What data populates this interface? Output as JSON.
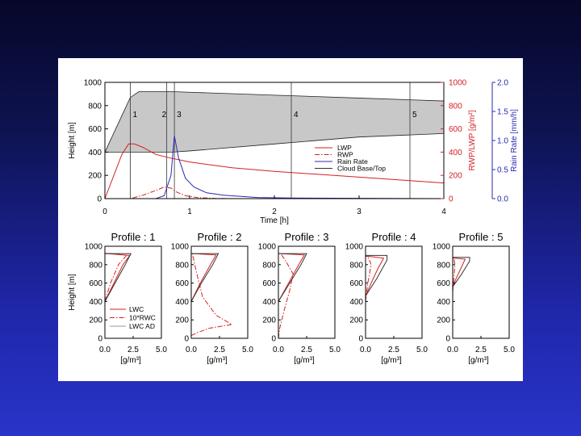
{
  "chart_data": [
    {
      "type": "line",
      "xlabel": "Time [h]",
      "ylabel_left": "Height [m]",
      "ylabel_right1": "RWP/LWP [g/m²]",
      "ylabel_right2": "Rain Rate [mm/h]",
      "xlim": [
        0,
        4
      ],
      "ylim": [
        0,
        1000
      ],
      "y2lim": [
        0,
        1000
      ],
      "y3lim": [
        0,
        2.0
      ],
      "xticks": [
        "0",
        "1",
        "2",
        "3",
        "4"
      ],
      "yticks": [
        "0",
        "200",
        "400",
        "600",
        "800",
        "1000"
      ],
      "y2ticks": [
        "0",
        "200",
        "400",
        "600",
        "800",
        "1000"
      ],
      "y3ticks": [
        "0.0",
        "0.5",
        "1.0",
        "1.5",
        "2.0"
      ],
      "cloud_band": {
        "x": [
          0.0,
          0.3,
          0.4,
          0.8,
          1.0,
          2.0,
          3.0,
          4.0
        ],
        "base": [
          400,
          400,
          400,
          400,
          410,
          470,
          530,
          560
        ],
        "top": [
          400,
          870,
          920,
          920,
          915,
          890,
          865,
          840
        ]
      },
      "profile_markers": [
        {
          "label": "1",
          "x": 0.3
        },
        {
          "label": "2",
          "x": 0.73
        },
        {
          "label": "3",
          "x": 0.82
        },
        {
          "label": "4",
          "x": 2.2
        },
        {
          "label": "5",
          "x": 3.6
        }
      ],
      "legend": [
        "LWP",
        "RWP",
        "Rain Rate",
        "Cloud Base/Top"
      ],
      "series": [
        {
          "name": "LWP",
          "color": "#d42020",
          "dash": "solid",
          "axis": "y2",
          "x": [
            0,
            0.2,
            0.28,
            0.35,
            0.45,
            0.6,
            0.8,
            1.0,
            1.5,
            2.0,
            2.5,
            3.0,
            3.5,
            4.0
          ],
          "y": [
            0,
            380,
            470,
            470,
            440,
            380,
            345,
            315,
            265,
            235,
            210,
            185,
            160,
            135
          ]
        },
        {
          "name": "RWP",
          "color": "#d42020",
          "dash": "dashdot",
          "axis": "y2",
          "x": [
            0,
            0.3,
            0.45,
            0.6,
            0.7,
            0.78,
            0.85,
            0.95,
            1.1,
            1.3,
            1.6
          ],
          "y": [
            0,
            0,
            30,
            70,
            100,
            90,
            55,
            25,
            8,
            2,
            0
          ]
        },
        {
          "name": "Rain Rate",
          "color": "#2a2ab0",
          "dash": "solid",
          "axis": "y3",
          "x": [
            0,
            0.6,
            0.7,
            0.78,
            0.82,
            0.87,
            0.95,
            1.05,
            1.2,
            1.4,
            1.8,
            2.2,
            4.0
          ],
          "y": [
            0,
            0,
            0.05,
            0.4,
            1.08,
            0.7,
            0.35,
            0.2,
            0.1,
            0.06,
            0.02,
            0.01,
            0.0
          ]
        }
      ]
    },
    {
      "type": "line",
      "title": "Profile : 1",
      "ylabel": "Height [m]",
      "xlabel": "[g/m³]",
      "xlim": [
        0,
        5
      ],
      "ylim": [
        0,
        1000
      ],
      "xticks": [
        "0.0",
        "2.5",
        "5.0"
      ],
      "yticks": [
        "0",
        "200",
        "400",
        "600",
        "800",
        "1000"
      ],
      "legend": [
        "LWC",
        "10*RWC",
        "LWC AD"
      ],
      "series": [
        {
          "name": "LWC",
          "color": "#d42020",
          "dash": "solid",
          "x": [
            0,
            0,
            0.8,
            1.6,
            2.2,
            0.3,
            0
          ],
          "y": [
            0,
            400,
            600,
            800,
            900,
            920,
            920
          ]
        },
        {
          "name": "10*RWC",
          "color": "#d42020",
          "dash": "dashdot",
          "x": [
            0,
            0,
            0.5,
            1.2,
            1.9,
            0.2,
            0
          ],
          "y": [
            0,
            400,
            600,
            800,
            900,
            925,
            925
          ]
        },
        {
          "name": "LWC AD",
          "color": "#333333",
          "dash": "solid",
          "x": [
            0,
            0,
            0.9,
            1.8,
            2.3,
            0
          ],
          "y": [
            0,
            400,
            600,
            800,
            920,
            920
          ]
        }
      ]
    },
    {
      "type": "line",
      "title": "Profile : 2",
      "xlabel": "[g/m³]",
      "xlim": [
        0,
        5
      ],
      "ylim": [
        0,
        1000
      ],
      "xticks": [
        "0.0",
        "2.5",
        "5.0"
      ],
      "yticks": [
        "0",
        "200",
        "400",
        "600",
        "800",
        "1000"
      ],
      "series": [
        {
          "name": "LWC",
          "color": "#d42020",
          "dash": "solid",
          "x": [
            0,
            0,
            0.8,
            1.7,
            2.2,
            0.2,
            0
          ],
          "y": [
            0,
            400,
            600,
            800,
            905,
            920,
            920
          ]
        },
        {
          "name": "10*RWC",
          "color": "#d42020",
          "dash": "dashdot",
          "x": [
            0,
            0.5,
            1.6,
            3.6,
            2.2,
            1.0,
            0.4,
            0.1
          ],
          "y": [
            30,
            60,
            110,
            150,
            250,
            450,
            750,
            920
          ]
        },
        {
          "name": "LWC AD",
          "color": "#333333",
          "dash": "solid",
          "x": [
            0,
            0,
            0.9,
            1.9,
            2.4,
            0
          ],
          "y": [
            0,
            400,
            600,
            800,
            920,
            920
          ]
        }
      ]
    },
    {
      "type": "line",
      "title": "Profile : 3",
      "xlabel": "[g/m³]",
      "xlim": [
        0,
        5
      ],
      "ylim": [
        0,
        1000
      ],
      "xticks": [
        "0.0",
        "2.5",
        "5.0"
      ],
      "yticks": [
        "0",
        "200",
        "400",
        "600",
        "800",
        "1000"
      ],
      "series": [
        {
          "name": "LWC",
          "color": "#d42020",
          "dash": "solid",
          "x": [
            0,
            0,
            0.9,
            1.8,
            2.3,
            0.2,
            0
          ],
          "y": [
            0,
            400,
            600,
            800,
            905,
            920,
            920
          ]
        },
        {
          "name": "10*RWC",
          "color": "#d42020",
          "dash": "dashdot",
          "x": [
            0,
            0.1,
            0.5,
            1.0,
            1.3,
            0.6,
            0.2
          ],
          "y": [
            0,
            100,
            300,
            520,
            700,
            850,
            920
          ]
        },
        {
          "name": "LWC AD",
          "color": "#333333",
          "dash": "solid",
          "x": [
            0,
            0,
            1.0,
            2.0,
            2.5,
            0
          ],
          "y": [
            0,
            400,
            600,
            800,
            920,
            920
          ]
        }
      ]
    },
    {
      "type": "line",
      "title": "Profile : 4",
      "xlabel": "[g/m³]",
      "xlim": [
        0,
        5
      ],
      "ylim": [
        0,
        1000
      ],
      "xticks": [
        "0.0",
        "2.5",
        "5.0"
      ],
      "yticks": [
        "0",
        "200",
        "400",
        "600",
        "800",
        "1000"
      ],
      "series": [
        {
          "name": "LWC",
          "color": "#d42020",
          "dash": "solid",
          "x": [
            0,
            0,
            0.5,
            1.1,
            1.6,
            0.3,
            0
          ],
          "y": [
            0,
            460,
            600,
            760,
            870,
            890,
            890
          ]
        },
        {
          "name": "10*RWC",
          "color": "#d42020",
          "dash": "dashdot",
          "x": [
            0,
            0,
            0.2,
            0.5,
            0.2
          ],
          "y": [
            0,
            400,
            600,
            800,
            890
          ]
        },
        {
          "name": "LWC AD",
          "color": "#333333",
          "dash": "solid",
          "x": [
            0,
            0,
            1.0,
            1.9,
            1.9,
            0
          ],
          "y": [
            0,
            460,
            650,
            850,
            900,
            900
          ]
        }
      ]
    },
    {
      "type": "line",
      "title": "Profile : 5",
      "xlabel": "[g/m³]",
      "xlim": [
        0,
        5
      ],
      "ylim": [
        0,
        1000
      ],
      "xticks": [
        "0.0",
        "2.5",
        "5.0"
      ],
      "yticks": [
        "0",
        "200",
        "400",
        "600",
        "800",
        "1000"
      ],
      "series": [
        {
          "name": "LWC",
          "color": "#d42020",
          "dash": "solid",
          "x": [
            0,
            0,
            0.3,
            0.8,
            1.1,
            0.2,
            0
          ],
          "y": [
            0,
            560,
            650,
            780,
            860,
            870,
            870
          ]
        },
        {
          "name": "10*RWC",
          "color": "#d42020",
          "dash": "dashdot",
          "x": [
            0,
            0,
            0.1,
            0.2,
            0.1
          ],
          "y": [
            0,
            500,
            650,
            800,
            870
          ]
        },
        {
          "name": "LWC AD",
          "color": "#333333",
          "dash": "solid",
          "x": [
            0,
            0,
            0.8,
            1.5,
            1.5,
            0
          ],
          "y": [
            0,
            560,
            700,
            840,
            880,
            880
          ]
        }
      ]
    }
  ]
}
